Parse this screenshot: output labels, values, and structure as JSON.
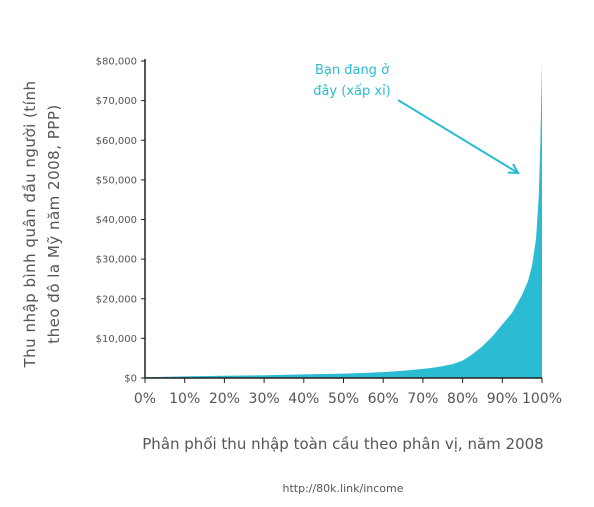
{
  "chart_data": {
    "type": "area",
    "color": "#2bbcd3",
    "xlabel": "Phân phối thu nhập toàn cầu theo phân vị, năm 2008",
    "ylabel_lines": [
      "Thu nhập bình quân đầu người (tính",
      "theo đô la Mỹ năm 2008, PPP)"
    ],
    "x_tick_labels": [
      "0%",
      "10%",
      "20%",
      "30%",
      "40%",
      "50%",
      "60%",
      "70%",
      "80%",
      "90%",
      "100%"
    ],
    "x_ticks": [
      0,
      10,
      20,
      30,
      40,
      50,
      60,
      70,
      80,
      90,
      100
    ],
    "y_tick_labels": [
      "$0",
      "$10,000",
      "$20,000",
      "$30,000",
      "$40,000",
      "$50,000",
      "$60,000",
      "$70,000",
      "$80,000"
    ],
    "y_ticks": [
      0,
      10000,
      20000,
      30000,
      40000,
      50000,
      60000,
      70000,
      80000
    ],
    "xlim": [
      0,
      100
    ],
    "ylim": [
      0,
      80000
    ],
    "x": [
      0,
      10,
      20,
      30,
      40,
      50,
      55,
      60,
      65,
      70,
      72.5,
      75,
      77.5,
      80,
      82.5,
      85,
      87.5,
      90,
      92.5,
      95,
      96.5,
      97.5,
      98.5,
      99.2,
      99.6,
      100
    ],
    "y": [
      200,
      400,
      550,
      700,
      900,
      1100,
      1250,
      1500,
      1850,
      2300,
      2600,
      3000,
      3500,
      4400,
      6000,
      8000,
      10500,
      13500,
      16500,
      21000,
      24500,
      28500,
      35000,
      46000,
      60000,
      80000
    ],
    "annotation": {
      "lines": [
        "Bạn đang ở",
        "đây (xấp xỉ)"
      ],
      "arrow_target": [
        95,
        52500
      ]
    }
  },
  "source": "http://80k.link/income"
}
